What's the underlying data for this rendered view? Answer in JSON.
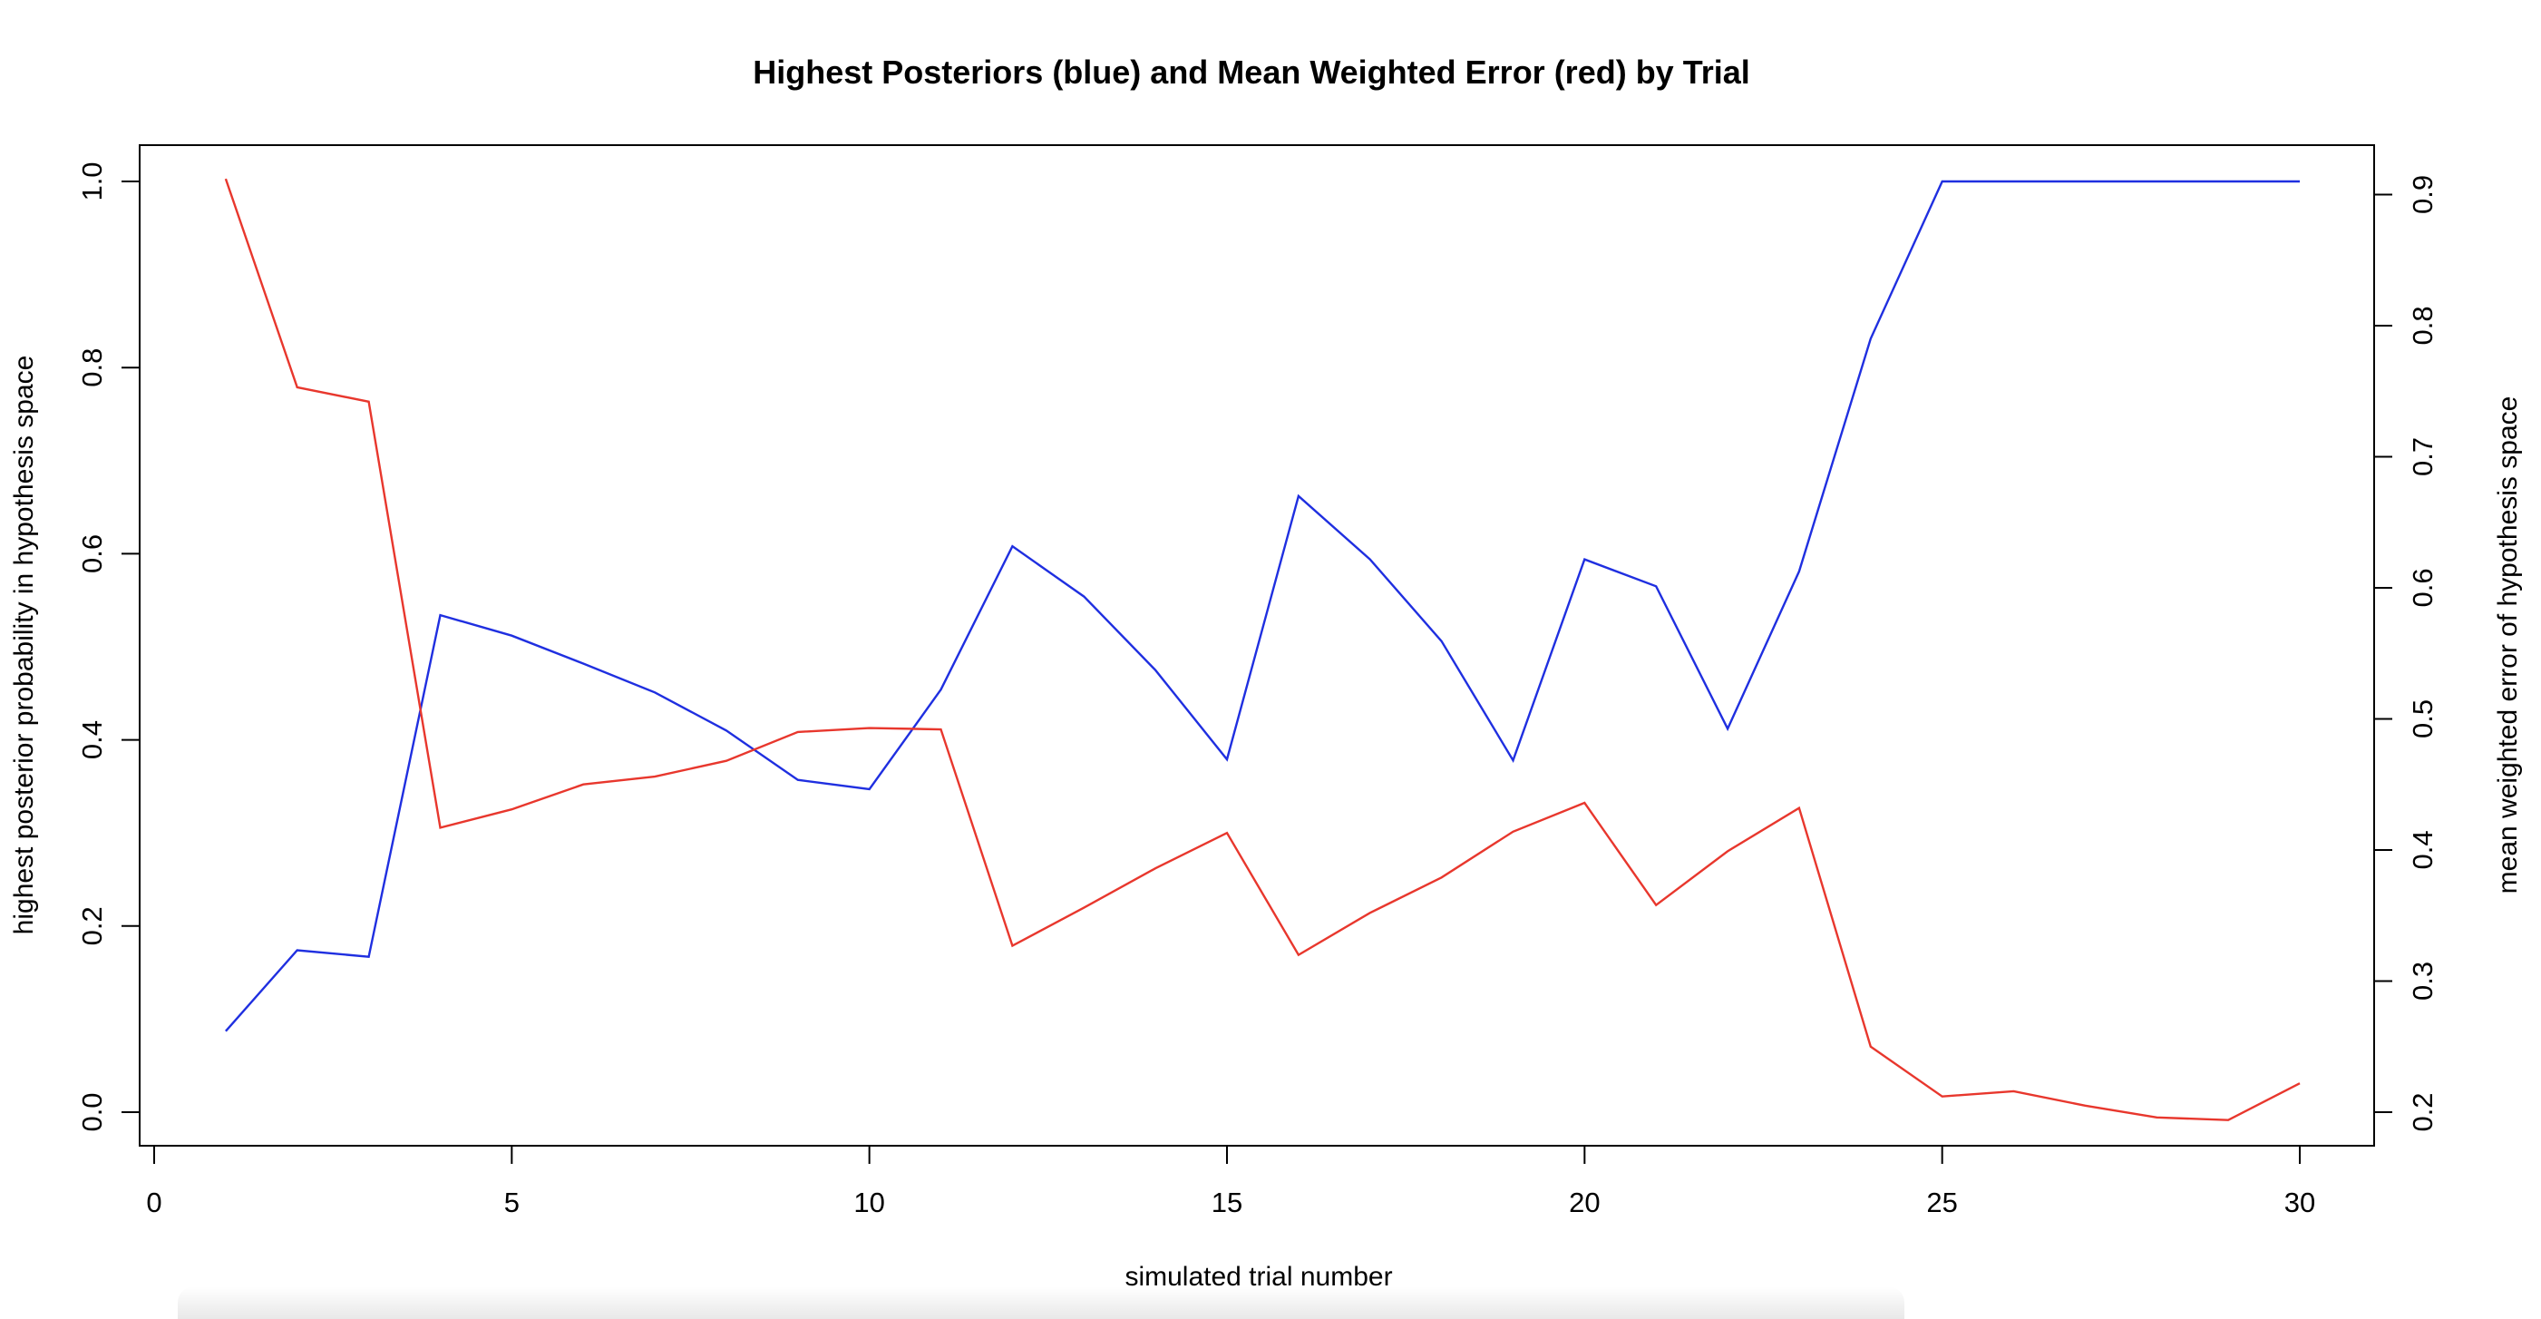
{
  "chart_data": {
    "type": "line",
    "title": "Highest Posteriors (blue) and Mean Weighted Error (red) by Trial",
    "xlabel": "simulated trial number",
    "ylabel": "highest posterior probability in hypothesis space",
    "y2label": "mean weighted error of hypothesis space",
    "xlim": [
      0,
      30
    ],
    "ylim": [
      0,
      1
    ],
    "y2lim": [
      0.2,
      0.91
    ],
    "x_ticks": [
      0,
      5,
      10,
      15,
      20,
      25,
      30
    ],
    "y_ticks": [
      0.0,
      0.2,
      0.4,
      0.6,
      0.8,
      1.0
    ],
    "y_tick_labels": [
      "0.0",
      "0.2",
      "0.4",
      "0.6",
      "0.8",
      "1.0"
    ],
    "y2_ticks": [
      0.2,
      0.3,
      0.4,
      0.5,
      0.6,
      0.7,
      0.8,
      0.9
    ],
    "y2_tick_labels": [
      "0.2",
      "0.3",
      "0.4",
      "0.5",
      "0.6",
      "0.7",
      "0.8",
      "0.9"
    ],
    "grid": false,
    "legend": "none",
    "x": [
      1,
      2,
      3,
      4,
      5,
      6,
      7,
      8,
      9,
      10,
      11,
      12,
      13,
      14,
      15,
      16,
      17,
      18,
      19,
      20,
      21,
      22,
      23,
      24,
      25,
      26,
      27,
      28,
      29,
      30
    ],
    "series": [
      {
        "axis": "left",
        "color": "#1f2fe0",
        "values": [
          0.087,
          0.174,
          0.167,
          0.534,
          0.512,
          0.482,
          0.451,
          0.41,
          0.357,
          0.347,
          0.454,
          0.608,
          0.554,
          0.475,
          0.379,
          0.662,
          0.594,
          0.506,
          0.378,
          0.594,
          0.565,
          0.412,
          0.581,
          0.831,
          1.0,
          1.0,
          1.0,
          1.0,
          1.0,
          1.0
        ]
      },
      {
        "axis": "right",
        "color": "#e8372d",
        "values": [
          0.912,
          0.753,
          0.742,
          0.417,
          0.431,
          0.45,
          0.456,
          0.468,
          0.49,
          0.493,
          0.492,
          0.327,
          0.356,
          0.386,
          0.413,
          0.32,
          0.352,
          0.379,
          0.414,
          0.436,
          0.358,
          0.399,
          0.432,
          0.25,
          0.212,
          0.216,
          0.205,
          0.196,
          0.194,
          0.222
        ]
      }
    ]
  }
}
